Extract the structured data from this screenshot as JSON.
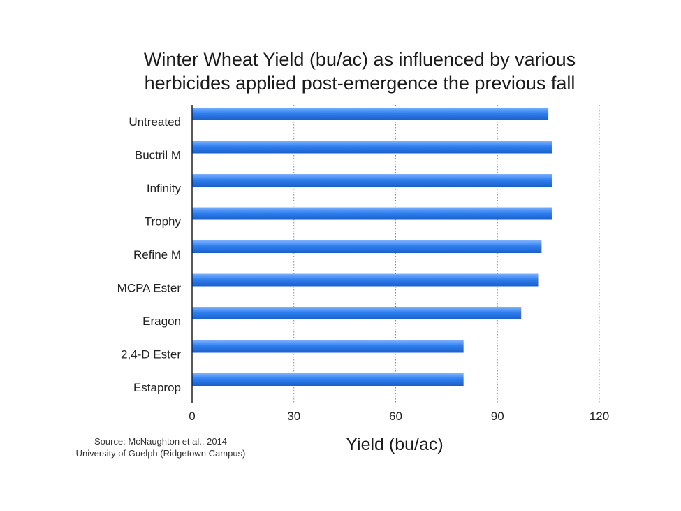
{
  "chart_data": {
    "type": "bar",
    "orientation": "horizontal",
    "title_lines": [
      "Winter Wheat Yield (bu/ac) as influenced by various",
      "herbicides applied post-emergence the previous fall"
    ],
    "categories": [
      "Untreated",
      "Buctril M",
      "Infinity",
      "Trophy",
      "Refine M",
      "MCPA Ester",
      "Eragon",
      "2,4-D Ester",
      "Estaprop"
    ],
    "values": [
      105,
      106,
      106,
      106,
      103,
      102,
      97,
      80,
      80
    ],
    "xlabel": "Yield (bu/ac)",
    "ylabel": "",
    "xlim": [
      0,
      120
    ],
    "xticks": [
      0,
      30,
      60,
      90,
      120
    ],
    "grid": "vertical dotted",
    "legend": "none",
    "colors": {
      "bar": "#2f7ff0",
      "bar_light": "#7fb2ff",
      "bar_dark": "#1a5fc8",
      "axis": "#222222",
      "grid": "#888888"
    },
    "source_lines": [
      "Source: McNaughton et al., 2014",
      "University of Guelph (Ridgetown Campus)"
    ]
  }
}
